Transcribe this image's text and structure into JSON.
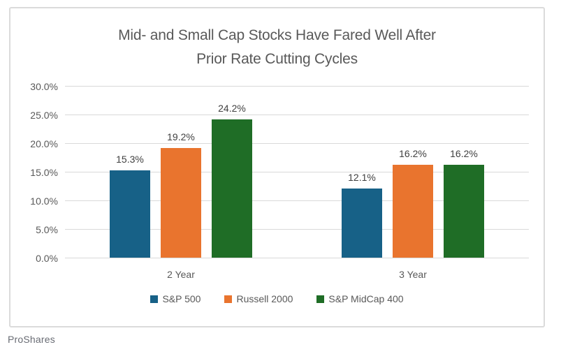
{
  "page": {
    "footer_brand": "ProShares"
  },
  "chart_data": {
    "type": "bar",
    "title": "Mid- and Small Cap Stocks Have Fared Well After Prior Rate Cutting Cycles",
    "title_lines": [
      "Mid- and Small Cap Stocks Have Fared Well After",
      "Prior Rate Cutting Cycles"
    ],
    "categories": [
      "2 Year",
      "3 Year"
    ],
    "series": [
      {
        "name": "S&P 500",
        "color": "#176187",
        "values": [
          15.3,
          12.1
        ],
        "data_labels": [
          "15.3%",
          "12.1%"
        ]
      },
      {
        "name": "Russell 2000",
        "color": "#E9742E",
        "values": [
          19.2,
          16.2
        ],
        "data_labels": [
          "19.2%",
          "16.2%"
        ]
      },
      {
        "name": "S&P MidCap 400",
        "color": "#1F6D26",
        "values": [
          24.2,
          16.2
        ],
        "data_labels": [
          "24.2%",
          "16.2%"
        ]
      }
    ],
    "xlabel": "",
    "ylabel": "",
    "ylim": [
      0,
      30
    ],
    "y_ticks": [
      {
        "value": 0,
        "label": "0.0%"
      },
      {
        "value": 5,
        "label": "5.0%"
      },
      {
        "value": 10,
        "label": "10.0%"
      },
      {
        "value": 15,
        "label": "15.0%"
      },
      {
        "value": 20,
        "label": "20.0%"
      },
      {
        "value": 25,
        "label": "25.0%"
      },
      {
        "value": 30,
        "label": "30.0%"
      }
    ],
    "grid": "horizontal",
    "legend_position": "bottom",
    "colors": {
      "gridline": "#D9D9D9",
      "frame_border": "#DBDBDB",
      "title_text": "#595959",
      "axis_text": "#595959",
      "data_label_text": "#404040",
      "footer_text": "#696C74"
    }
  }
}
